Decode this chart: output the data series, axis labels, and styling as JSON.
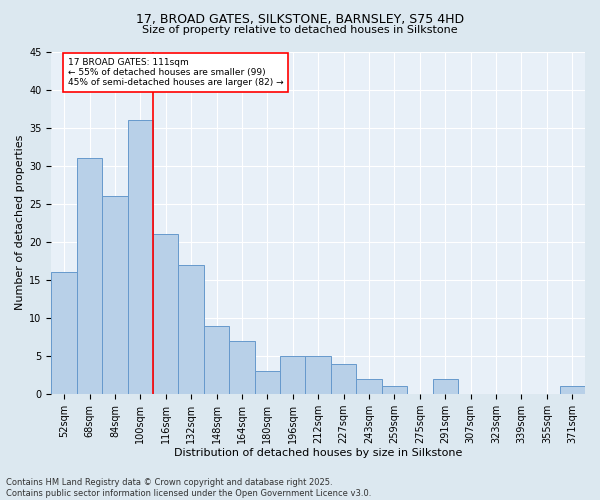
{
  "title1": "17, BROAD GATES, SILKSTONE, BARNSLEY, S75 4HD",
  "title2": "Size of property relative to detached houses in Silkstone",
  "xlabel": "Distribution of detached houses by size in Silkstone",
  "ylabel": "Number of detached properties",
  "footer1": "Contains HM Land Registry data © Crown copyright and database right 2025.",
  "footer2": "Contains public sector information licensed under the Open Government Licence v3.0.",
  "bin_labels": [
    "52sqm",
    "68sqm",
    "84sqm",
    "100sqm",
    "116sqm",
    "132sqm",
    "148sqm",
    "164sqm",
    "180sqm",
    "196sqm",
    "212sqm",
    "227sqm",
    "243sqm",
    "259sqm",
    "275sqm",
    "291sqm",
    "307sqm",
    "323sqm",
    "339sqm",
    "355sqm",
    "371sqm"
  ],
  "bar_heights": [
    16,
    31,
    26,
    36,
    21,
    17,
    9,
    7,
    3,
    5,
    5,
    4,
    2,
    1,
    0,
    2,
    0,
    0,
    0,
    0,
    1
  ],
  "bar_color": "#b8d0e8",
  "bar_edge_color": "#6699cc",
  "vline_color": "red",
  "vline_x_index": 3.5,
  "annotation_box_text": "17 BROAD GATES: 111sqm\n← 55% of detached houses are smaller (99)\n45% of semi-detached houses are larger (82) →",
  "annotation_box_edge_color": "red",
  "annotation_bg": "white",
  "ylim": [
    0,
    45
  ],
  "yticks": [
    0,
    5,
    10,
    15,
    20,
    25,
    30,
    35,
    40,
    45
  ],
  "bg_color": "#dce8f0",
  "plot_bg": "#e8f0f8",
  "grid_color": "white",
  "title1_fontsize": 9,
  "title2_fontsize": 8,
  "ylabel_fontsize": 8,
  "xlabel_fontsize": 8,
  "tick_fontsize": 7,
  "footer_fontsize": 6
}
